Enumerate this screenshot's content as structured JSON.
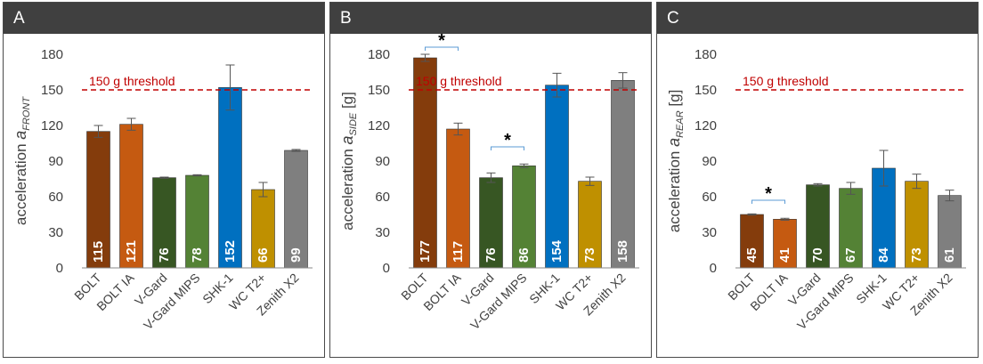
{
  "colors": {
    "BOLT": "#843c0c",
    "BOLT IA": "#c55a11",
    "V-Gard": "#375623",
    "V-Gard MIPS": "#548235",
    "SHK-1": "#0070c0",
    "WC T2+": "#bf9000",
    "Zenith X2": "#7f7f7f",
    "threshold": "#c00000",
    "header": "#404040"
  },
  "chart_data": [
    {
      "panel": "A",
      "type": "bar",
      "categories": [
        "BOLT",
        "BOLT IA",
        "V-Gard",
        "V-Gard MIPS",
        "SHK-1",
        "WC T2+",
        "Zenith X2"
      ],
      "values": [
        115,
        121,
        76,
        78,
        152,
        66,
        99
      ],
      "value_labels": [
        "115",
        "121",
        "76",
        "78",
        "152",
        "66",
        "99"
      ],
      "errors": [
        5,
        5,
        0.5,
        0.5,
        19,
        6,
        0.8
      ],
      "ylim": [
        0,
        180
      ],
      "yticks": [
        "0",
        "30",
        "60",
        "90",
        "120",
        "150",
        "180"
      ],
      "ylabel_main": "acceleration ",
      "ylabel_var": "a",
      "ylabel_sub": "FRONT",
      "ylabel_unit": "",
      "threshold": {
        "value": 150,
        "label": "150 g threshold"
      },
      "significance": []
    },
    {
      "panel": "B",
      "type": "bar",
      "categories": [
        "BOLT",
        "BOLT IA",
        "V-Gard",
        "V-Gard MIPS",
        "SHK-1",
        "WC T2+",
        "Zenith X2"
      ],
      "values": [
        177,
        117,
        76,
        86,
        154,
        73,
        158
      ],
      "value_labels": [
        "177",
        "117",
        "76",
        "86",
        "154",
        "73",
        "158"
      ],
      "errors": [
        3,
        5,
        4,
        1.5,
        10,
        3.5,
        6.5
      ],
      "ylim": [
        0,
        180
      ],
      "yticks": [
        "0",
        "30",
        "60",
        "90",
        "120",
        "150",
        "180"
      ],
      "ylabel_main": "acceleration ",
      "ylabel_var": "a",
      "ylabel_sub": "SIDE",
      "ylabel_unit": " [g]",
      "threshold": {
        "value": 150,
        "label": "150 g threshold"
      },
      "significance": [
        {
          "from": 0,
          "to": 1,
          "y": 186,
          "mark": "*"
        },
        {
          "from": 2,
          "to": 3,
          "y": 102,
          "mark": "*"
        }
      ]
    },
    {
      "panel": "C",
      "type": "bar",
      "categories": [
        "BOLT",
        "BOLT IA",
        "V-Gard",
        "V-Gard MIPS",
        "SHK-1",
        "WC T2+",
        "Zenith X2"
      ],
      "values": [
        45,
        41,
        70,
        67,
        84,
        73,
        61
      ],
      "value_labels": [
        "45",
        "41",
        "70",
        "67",
        "84",
        "73",
        "61"
      ],
      "errors": [
        0.5,
        0.8,
        1,
        5,
        15,
        6,
        4.5
      ],
      "ylim": [
        0,
        180
      ],
      "yticks": [
        "0",
        "30",
        "60",
        "90",
        "120",
        "150",
        "180"
      ],
      "ylabel_main": "acceleration ",
      "ylabel_var": "a",
      "ylabel_sub": "REAR",
      "ylabel_unit": " [g]",
      "threshold": {
        "value": 150,
        "label": "150 g threshold"
      },
      "significance": [
        {
          "from": 0,
          "to": 1,
          "y": 57,
          "mark": "*"
        }
      ]
    }
  ]
}
